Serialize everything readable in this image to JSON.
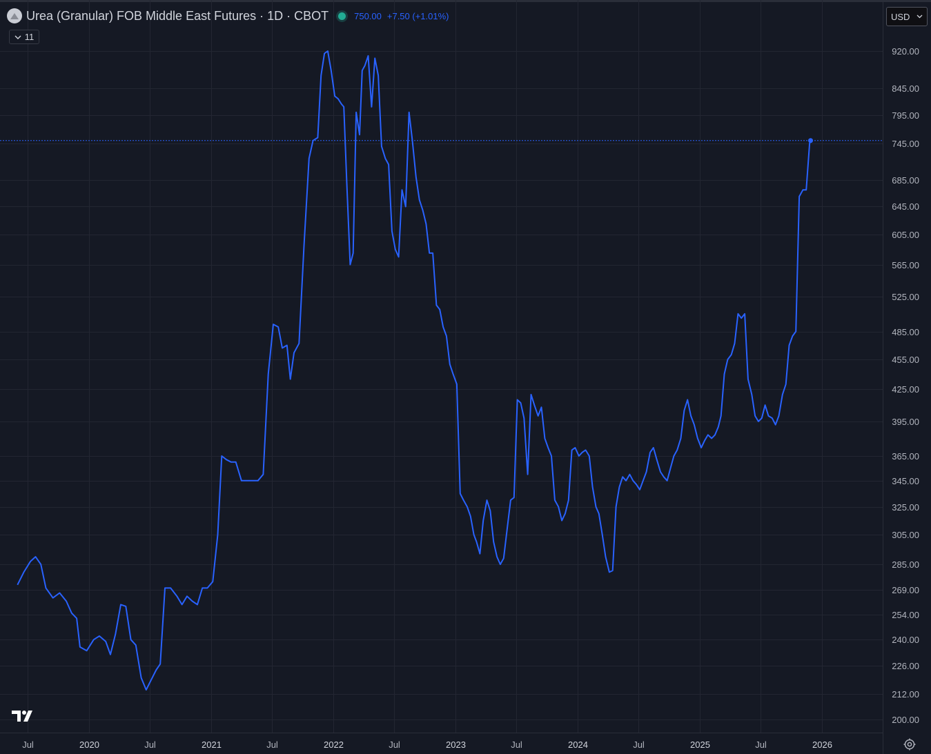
{
  "header": {
    "title": "Urea (Granular) FOB Middle East Futures · 1D · CBOT",
    "price": "750.00",
    "change": "+7.50 (+1.01%)",
    "collapse_count": "11"
  },
  "currency": {
    "label": "USD"
  },
  "colors": {
    "background": "#151924",
    "line": "#2962ff",
    "grid": "#232632",
    "status_dot": "#22ab94"
  },
  "icons": [
    "symbol-logo-icon",
    "chevron-down-icon",
    "tradingview-logo-icon",
    "settings-gear-icon"
  ],
  "chart_data": {
    "type": "line",
    "title": "",
    "xlabel": "",
    "ylabel": "",
    "y_scale": "log",
    "ylim": [
      192,
      960
    ],
    "grid": true,
    "last_value": 750.0,
    "y_ticks": [
      "920.00",
      "845.00",
      "795.00",
      "745.00",
      "685.00",
      "645.00",
      "605.00",
      "565.00",
      "525.00",
      "485.00",
      "455.00",
      "425.00",
      "395.00",
      "365.00",
      "345.00",
      "325.00",
      "305.00",
      "285.00",
      "269.00",
      "254.00",
      "240.00",
      "226.00",
      "212.00",
      "200.00"
    ],
    "x_ticks": [
      {
        "label": "Jul",
        "date": "2019-07-01",
        "year": false
      },
      {
        "label": "2020",
        "date": "2020-01-01",
        "year": true
      },
      {
        "label": "Jul",
        "date": "2020-07-01",
        "year": false
      },
      {
        "label": "2021",
        "date": "2021-01-01",
        "year": true
      },
      {
        "label": "Jul",
        "date": "2021-07-01",
        "year": false
      },
      {
        "label": "2022",
        "date": "2022-01-01",
        "year": true
      },
      {
        "label": "Jul",
        "date": "2022-07-01",
        "year": false
      },
      {
        "label": "2023",
        "date": "2023-01-01",
        "year": true
      },
      {
        "label": "Jul",
        "date": "2023-07-01",
        "year": false
      },
      {
        "label": "2024",
        "date": "2024-01-01",
        "year": true
      },
      {
        "label": "Jul",
        "date": "2024-07-01",
        "year": false
      },
      {
        "label": "2025",
        "date": "2025-01-01",
        "year": true
      },
      {
        "label": "Jul",
        "date": "2025-07-01",
        "year": false
      },
      {
        "label": "2026",
        "date": "2026-01-01",
        "year": true
      }
    ],
    "series": [
      {
        "points": [
          [
            "2019-06-01",
            272
          ],
          [
            "2019-06-20",
            280
          ],
          [
            "2019-07-10",
            287
          ],
          [
            "2019-07-25",
            290
          ],
          [
            "2019-08-10",
            285
          ],
          [
            "2019-08-25",
            270
          ],
          [
            "2019-09-15",
            264
          ],
          [
            "2019-10-05",
            267
          ],
          [
            "2019-10-25",
            262
          ],
          [
            "2019-11-10",
            255
          ],
          [
            "2019-11-25",
            252
          ],
          [
            "2019-12-05",
            236
          ],
          [
            "2019-12-25",
            234
          ],
          [
            "2020-01-15",
            240
          ],
          [
            "2020-02-01",
            242
          ],
          [
            "2020-02-20",
            239
          ],
          [
            "2020-03-05",
            232
          ],
          [
            "2020-03-20",
            243
          ],
          [
            "2020-04-05",
            260
          ],
          [
            "2020-04-20",
            259
          ],
          [
            "2020-05-05",
            240
          ],
          [
            "2020-05-20",
            237
          ],
          [
            "2020-06-05",
            220
          ],
          [
            "2020-06-20",
            214
          ],
          [
            "2020-07-05",
            219
          ],
          [
            "2020-07-20",
            224
          ],
          [
            "2020-08-01",
            227
          ],
          [
            "2020-08-15",
            270
          ],
          [
            "2020-09-01",
            270
          ],
          [
            "2020-09-20",
            265
          ],
          [
            "2020-10-05",
            260
          ],
          [
            "2020-10-20",
            265
          ],
          [
            "2020-11-05",
            262
          ],
          [
            "2020-11-20",
            260
          ],
          [
            "2020-12-05",
            270
          ],
          [
            "2020-12-20",
            270
          ],
          [
            "2021-01-05",
            274
          ],
          [
            "2021-01-20",
            305
          ],
          [
            "2021-02-01",
            365
          ],
          [
            "2021-02-15",
            362
          ],
          [
            "2021-03-01",
            360
          ],
          [
            "2021-03-15",
            360
          ],
          [
            "2021-04-01",
            345
          ],
          [
            "2021-04-20",
            345
          ],
          [
            "2021-05-05",
            345
          ],
          [
            "2021-05-20",
            345
          ],
          [
            "2021-06-05",
            350
          ],
          [
            "2021-06-20",
            440
          ],
          [
            "2021-07-05",
            493
          ],
          [
            "2021-07-20",
            490
          ],
          [
            "2021-08-01",
            467
          ],
          [
            "2021-08-15",
            470
          ],
          [
            "2021-08-25",
            435
          ],
          [
            "2021-09-05",
            462
          ],
          [
            "2021-09-20",
            472
          ],
          [
            "2021-10-05",
            590
          ],
          [
            "2021-10-20",
            720
          ],
          [
            "2021-11-01",
            750
          ],
          [
            "2021-11-15",
            755
          ],
          [
            "2021-11-25",
            870
          ],
          [
            "2021-12-05",
            915
          ],
          [
            "2021-12-15",
            920
          ],
          [
            "2021-12-25",
            880
          ],
          [
            "2022-01-05",
            830
          ],
          [
            "2022-01-15",
            825
          ],
          [
            "2022-01-25",
            815
          ],
          [
            "2022-02-01",
            810
          ],
          [
            "2022-02-10",
            680
          ],
          [
            "2022-02-20",
            565
          ],
          [
            "2022-03-01",
            580
          ],
          [
            "2022-03-10",
            800
          ],
          [
            "2022-03-20",
            760
          ],
          [
            "2022-03-28",
            880
          ],
          [
            "2022-04-05",
            890
          ],
          [
            "2022-04-15",
            910
          ],
          [
            "2022-04-25",
            810
          ],
          [
            "2022-05-05",
            905
          ],
          [
            "2022-05-15",
            870
          ],
          [
            "2022-05-25",
            740
          ],
          [
            "2022-06-05",
            720
          ],
          [
            "2022-06-15",
            710
          ],
          [
            "2022-06-25",
            610
          ],
          [
            "2022-07-05",
            585
          ],
          [
            "2022-07-15",
            575
          ],
          [
            "2022-07-25",
            670
          ],
          [
            "2022-08-05",
            645
          ],
          [
            "2022-08-15",
            800
          ],
          [
            "2022-08-25",
            750
          ],
          [
            "2022-09-05",
            690
          ],
          [
            "2022-09-15",
            655
          ],
          [
            "2022-09-25",
            640
          ],
          [
            "2022-10-05",
            620
          ],
          [
            "2022-10-15",
            580
          ],
          [
            "2022-10-25",
            580
          ],
          [
            "2022-11-05",
            515
          ],
          [
            "2022-11-15",
            510
          ],
          [
            "2022-11-25",
            490
          ],
          [
            "2022-12-05",
            480
          ],
          [
            "2022-12-15",
            450
          ],
          [
            "2022-12-25",
            440
          ],
          [
            "2023-01-05",
            430
          ],
          [
            "2023-01-15",
            335
          ],
          [
            "2023-01-25",
            330
          ],
          [
            "2023-02-05",
            325
          ],
          [
            "2023-02-15",
            318
          ],
          [
            "2023-02-25",
            305
          ],
          [
            "2023-03-05",
            300
          ],
          [
            "2023-03-15",
            292
          ],
          [
            "2023-03-25",
            315
          ],
          [
            "2023-04-05",
            330
          ],
          [
            "2023-04-15",
            322
          ],
          [
            "2023-04-25",
            300
          ],
          [
            "2023-05-05",
            290
          ],
          [
            "2023-05-15",
            285
          ],
          [
            "2023-05-25",
            289
          ],
          [
            "2023-06-05",
            310
          ],
          [
            "2023-06-15",
            330
          ],
          [
            "2023-06-25",
            332
          ],
          [
            "2023-07-05",
            415
          ],
          [
            "2023-07-15",
            412
          ],
          [
            "2023-07-25",
            398
          ],
          [
            "2023-08-05",
            350
          ],
          [
            "2023-08-15",
            420
          ],
          [
            "2023-08-25",
            410
          ],
          [
            "2023-09-05",
            400
          ],
          [
            "2023-09-15",
            408
          ],
          [
            "2023-09-25",
            380
          ],
          [
            "2023-10-05",
            372
          ],
          [
            "2023-10-15",
            365
          ],
          [
            "2023-10-25",
            330
          ],
          [
            "2023-11-05",
            325
          ],
          [
            "2023-11-15",
            315
          ],
          [
            "2023-11-25",
            320
          ],
          [
            "2023-12-05",
            330
          ],
          [
            "2023-12-15",
            370
          ],
          [
            "2023-12-25",
            372
          ],
          [
            "2024-01-05",
            365
          ],
          [
            "2024-01-15",
            368
          ],
          [
            "2024-01-25",
            370
          ],
          [
            "2024-02-05",
            365
          ],
          [
            "2024-02-15",
            340
          ],
          [
            "2024-02-25",
            325
          ],
          [
            "2024-03-05",
            320
          ],
          [
            "2024-03-15",
            305
          ],
          [
            "2024-03-25",
            290
          ],
          [
            "2024-04-05",
            280
          ],
          [
            "2024-04-15",
            281
          ],
          [
            "2024-04-25",
            325
          ],
          [
            "2024-05-05",
            340
          ],
          [
            "2024-05-15",
            348
          ],
          [
            "2024-05-25",
            345
          ],
          [
            "2024-06-05",
            350
          ],
          [
            "2024-06-15",
            345
          ],
          [
            "2024-06-25",
            342
          ],
          [
            "2024-07-05",
            338
          ],
          [
            "2024-07-15",
            345
          ],
          [
            "2024-07-25",
            352
          ],
          [
            "2024-08-05",
            368
          ],
          [
            "2024-08-15",
            372
          ],
          [
            "2024-08-25",
            362
          ],
          [
            "2024-09-05",
            352
          ],
          [
            "2024-09-15",
            348
          ],
          [
            "2024-09-25",
            345
          ],
          [
            "2024-10-05",
            355
          ],
          [
            "2024-10-15",
            365
          ],
          [
            "2024-10-25",
            370
          ],
          [
            "2024-11-05",
            380
          ],
          [
            "2024-11-15",
            405
          ],
          [
            "2024-11-25",
            415
          ],
          [
            "2024-12-05",
            400
          ],
          [
            "2024-12-15",
            392
          ],
          [
            "2024-12-25",
            380
          ],
          [
            "2025-01-05",
            372
          ],
          [
            "2025-01-15",
            378
          ],
          [
            "2025-01-25",
            383
          ],
          [
            "2025-02-05",
            380
          ],
          [
            "2025-02-15",
            383
          ],
          [
            "2025-02-25",
            390
          ],
          [
            "2025-03-05",
            400
          ],
          [
            "2025-03-15",
            440
          ],
          [
            "2025-03-25",
            455
          ],
          [
            "2025-04-05",
            460
          ],
          [
            "2025-04-15",
            472
          ],
          [
            "2025-04-25",
            505
          ],
          [
            "2025-05-05",
            500
          ],
          [
            "2025-05-15",
            505
          ],
          [
            "2025-05-25",
            435
          ],
          [
            "2025-06-05",
            420
          ],
          [
            "2025-06-15",
            400
          ],
          [
            "2025-06-25",
            395
          ],
          [
            "2025-07-05",
            398
          ],
          [
            "2025-07-15",
            410
          ],
          [
            "2025-07-25",
            400
          ],
          [
            "2025-08-05",
            398
          ],
          [
            "2025-08-15",
            392
          ],
          [
            "2025-08-25",
            400
          ],
          [
            "2025-09-05",
            420
          ],
          [
            "2025-09-15",
            430
          ],
          [
            "2025-09-25",
            470
          ],
          [
            "2025-10-05",
            480
          ],
          [
            "2025-10-15",
            485
          ],
          [
            "2025-10-25",
            660
          ],
          [
            "2025-11-05",
            670
          ],
          [
            "2025-11-15",
            670
          ],
          [
            "2025-11-25",
            745
          ],
          [
            "2025-11-28",
            750
          ]
        ]
      }
    ]
  }
}
